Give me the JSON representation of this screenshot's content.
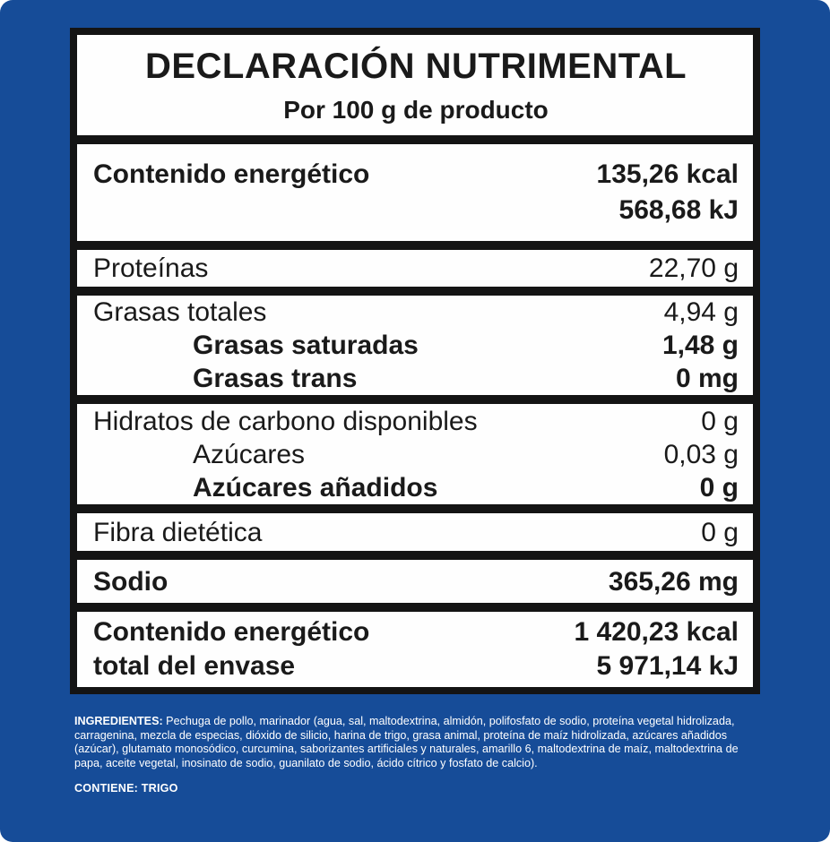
{
  "colors": {
    "background_blue": "#164c98",
    "frame_black": "#141414",
    "row_white": "#fefefe",
    "table_text": "#1a1a1a",
    "footer_text": "#ffffff"
  },
  "header": {
    "title": "DECLARACIÓN NUTRIMENTAL",
    "subtitle": "Por 100 g de producto"
  },
  "rows": {
    "energy": {
      "label": "Contenido energético",
      "value1": "135,26 kcal",
      "value2": "568,68 kJ"
    },
    "protein": {
      "label": "Proteínas",
      "value": "22,70 g"
    },
    "fat_total": {
      "label": "Grasas totales",
      "value": "4,94 g"
    },
    "fat_saturated": {
      "label": "Grasas saturadas",
      "value": "1,48 g"
    },
    "fat_trans": {
      "label": "Grasas trans",
      "value": "0 mg"
    },
    "carbs": {
      "label": "Hidratos de carbono disponibles",
      "value": "0 g"
    },
    "sugars": {
      "label": "Azúcares",
      "value": "0,03 g"
    },
    "added_sugars": {
      "label": "Azúcares añadidos",
      "value": "0 g"
    },
    "fiber": {
      "label": "Fibra dietética",
      "value": "0 g"
    },
    "sodium": {
      "label": "Sodio",
      "value": "365,26 mg"
    },
    "total_energy": {
      "label1": "Contenido energético",
      "label2": "total del envase",
      "value1": "1 420,23 kcal",
      "value2": "5 971,14 kJ"
    }
  },
  "footer": {
    "ingredients_heading": "INGREDIENTES:",
    "ingredients_text": " Pechuga de pollo, marinador (agua, sal, maltodextrina, almidón, polifosfato de sodio, proteína vegetal hidrolizada, carragenina, mezcla de especias, dióxido de silicio, harina de trigo, grasa animal, proteína de maíz hidrolizada, azúcares añadidos (azúcar), glutamato monosódico, curcumina, saborizantes artificiales y naturales, amarillo 6, maltodextrina de maíz, maltodextrina de papa, aceite vegetal, inosinato de sodio, guanilato de sodio, ácido cítrico y fosfato de calcio).",
    "contains": "CONTIENE: TRIGO"
  }
}
